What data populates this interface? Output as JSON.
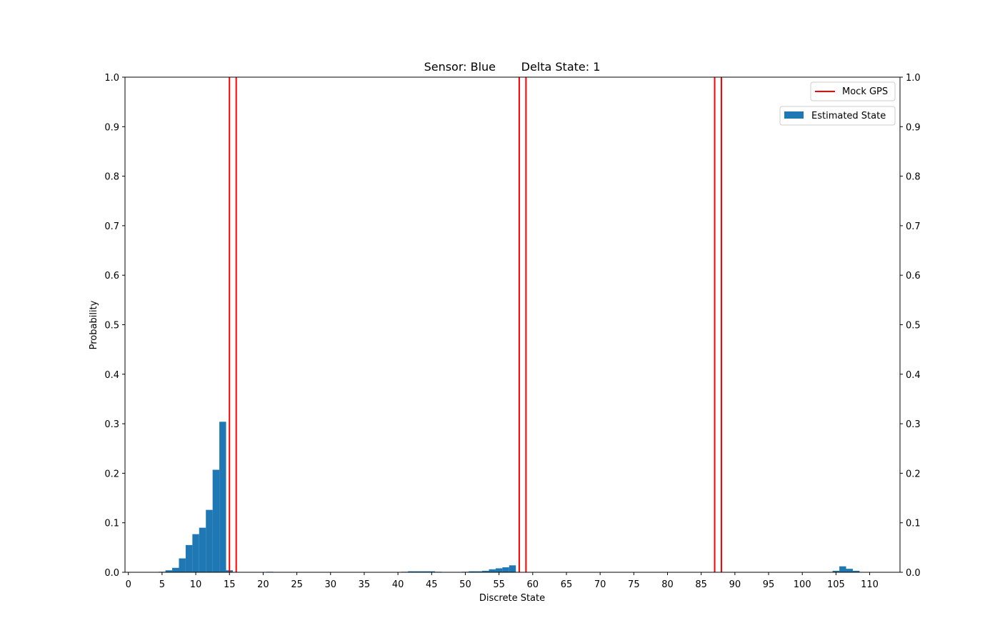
{
  "chart_data": {
    "type": "bar",
    "title": "Sensor: Blue       Delta State: 1",
    "xlabel": "Discrete State",
    "ylabel": "Probability",
    "xlim": [
      -0.5,
      114.5
    ],
    "ylim": [
      0,
      1.0
    ],
    "x_ticks": [
      0,
      5,
      10,
      15,
      20,
      25,
      30,
      35,
      40,
      45,
      50,
      55,
      60,
      65,
      70,
      75,
      80,
      85,
      90,
      95,
      100,
      105,
      110
    ],
    "y_ticks": [
      "0.0",
      "0.1",
      "0.2",
      "0.3",
      "0.4",
      "0.5",
      "0.6",
      "0.7",
      "0.8",
      "0.9",
      "1.0"
    ],
    "right_axis_ticks": true,
    "grid": false,
    "series": [
      {
        "name": "Estimated State",
        "type": "bar",
        "color": "#1f77b4",
        "x": [
          5,
          6,
          7,
          8,
          9,
          10,
          11,
          12,
          13,
          14,
          15,
          21,
          41,
          42,
          43,
          44,
          45,
          46,
          50,
          51,
          52,
          53,
          54,
          55,
          56,
          57,
          105,
          106,
          107,
          108
        ],
        "values": [
          0.001,
          0.004,
          0.009,
          0.028,
          0.055,
          0.077,
          0.09,
          0.126,
          0.207,
          0.304,
          0.004,
          0.001,
          0.001,
          0.002,
          0.002,
          0.002,
          0.002,
          0.001,
          0.001,
          0.002,
          0.002,
          0.003,
          0.006,
          0.008,
          0.01,
          0.014,
          0.003,
          0.012,
          0.007,
          0.003
        ]
      },
      {
        "name": "Mock GPS",
        "type": "vline",
        "color": "#ff0000",
        "x": [
          15,
          16,
          58,
          59,
          87,
          88
        ]
      }
    ],
    "legend": {
      "placement": "top-right",
      "entries": [
        "Mock GPS",
        "Estimated State"
      ]
    }
  }
}
